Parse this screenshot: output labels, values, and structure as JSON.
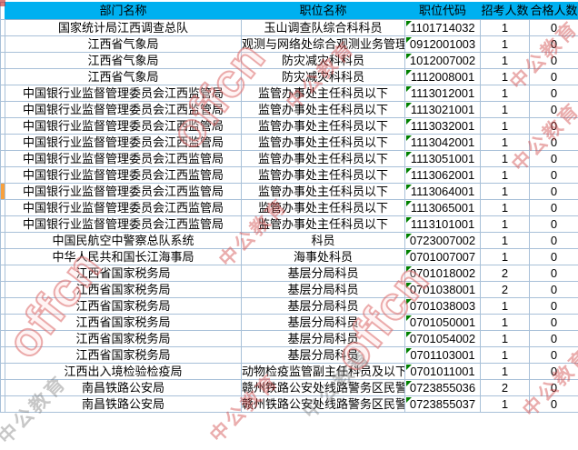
{
  "table": {
    "columns": [
      {
        "label": "部门名称"
      },
      {
        "label": "职位名称"
      },
      {
        "label": "职位代码"
      },
      {
        "label": "招考人数"
      },
      {
        "label": "合格人数"
      }
    ],
    "rows": [
      {
        "dept": "国家统计局江西调查总队",
        "position": "玉山调查队综合科科员",
        "code": "1101714032",
        "recruit": "1",
        "qualified": "0"
      },
      {
        "dept": "江西省气象局",
        "position": "观测与网络处综合观测业务管理",
        "code": "0912001003",
        "recruit": "1",
        "qualified": "0"
      },
      {
        "dept": "江西省气象局",
        "position": "防灾减灾科科员",
        "code": "1012007002",
        "recruit": "1",
        "qualified": "0"
      },
      {
        "dept": "江西省气象局",
        "position": "防灾减灾科科员",
        "code": "1112008001",
        "recruit": "1",
        "qualified": "0"
      },
      {
        "dept": "中国银行业监督管理委员会江西监管局",
        "position": "监管办事处主任科员以下",
        "code": "1113012001",
        "recruit": "1",
        "qualified": "0"
      },
      {
        "dept": "中国银行业监督管理委员会江西监管局",
        "position": "监管办事处主任科员以下",
        "code": "1113021001",
        "recruit": "1",
        "qualified": "0"
      },
      {
        "dept": "中国银行业监督管理委员会江西监管局",
        "position": "监管办事处主任科员以下",
        "code": "1113032001",
        "recruit": "1",
        "qualified": "0"
      },
      {
        "dept": "中国银行业监督管理委员会江西监管局",
        "position": "监管办事处主任科员以下",
        "code": "1113042001",
        "recruit": "1",
        "qualified": "0"
      },
      {
        "dept": "中国银行业监督管理委员会江西监管局",
        "position": "监管办事处主任科员以下",
        "code": "1113051001",
        "recruit": "1",
        "qualified": "0"
      },
      {
        "dept": "中国银行业监督管理委员会江西监管局",
        "position": "监管办事处主任科员以下",
        "code": "1113062001",
        "recruit": "1",
        "qualified": "0"
      },
      {
        "dept": "中国银行业监督管理委员会江西监管局",
        "position": "监管办事处主任科员以下",
        "code": "1113064001",
        "recruit": "1",
        "qualified": "0",
        "gutter_marker": true
      },
      {
        "dept": "中国银行业监督管理委员会江西监管局",
        "position": "监管办事处主任科员以下",
        "code": "1113065001",
        "recruit": "1",
        "qualified": "0"
      },
      {
        "dept": "中国银行业监督管理委员会江西监管局",
        "position": "监管办事处主任科员以下",
        "code": "1113101001",
        "recruit": "1",
        "qualified": "0"
      },
      {
        "dept": "中国民航空中警察总队系统",
        "position": "科员",
        "code": "0723007002",
        "recruit": "1",
        "qualified": "0"
      },
      {
        "dept": "中华人民共和国长江海事局",
        "position": "海事处科员",
        "code": "0701007007",
        "recruit": "1",
        "qualified": "0"
      },
      {
        "dept": "江西省国家税务局",
        "position": "基层分局科员",
        "code": "0701018002",
        "recruit": "2",
        "qualified": "0"
      },
      {
        "dept": "江西省国家税务局",
        "position": "基层分局科员",
        "code": "0701038001",
        "recruit": "2",
        "qualified": "0"
      },
      {
        "dept": "江西省国家税务局",
        "position": "基层分局科员",
        "code": "0701038003",
        "recruit": "1",
        "qualified": "0"
      },
      {
        "dept": "江西省国家税务局",
        "position": "基层分局科员",
        "code": "0701050001",
        "recruit": "1",
        "qualified": "0"
      },
      {
        "dept": "江西省国家税务局",
        "position": "基层分局科员",
        "code": "0701054002",
        "recruit": "1",
        "qualified": "0"
      },
      {
        "dept": "江西省国家税务局",
        "position": "基层分局科员",
        "code": "0701103001",
        "recruit": "1",
        "qualified": "0"
      },
      {
        "dept": "江西出入境检验检疫局",
        "position": "动物检疫监管副主任科员及以下",
        "code": "0701011001",
        "recruit": "1",
        "qualified": "0"
      },
      {
        "dept": "南昌铁路公安局",
        "position": "赣州铁路公安处线路警务区民警",
        "code": "0723855036",
        "recruit": "2",
        "qualified": "0"
      },
      {
        "dept": "南昌铁路公安局",
        "position": "赣州铁路公安处线路警务区民警",
        "code": "0723855037",
        "recruit": "1",
        "qualified": "0"
      }
    ]
  },
  "watermarks": {
    "offcn": "offcn",
    "brand": "中公教育"
  },
  "colors": {
    "header_bg": "#00B0F0",
    "grid_line": "#A8C0D8",
    "gutter_marker_orange": "#F9A13D",
    "text_flag_green": "#008000",
    "watermark_red": "#D85C5C"
  }
}
